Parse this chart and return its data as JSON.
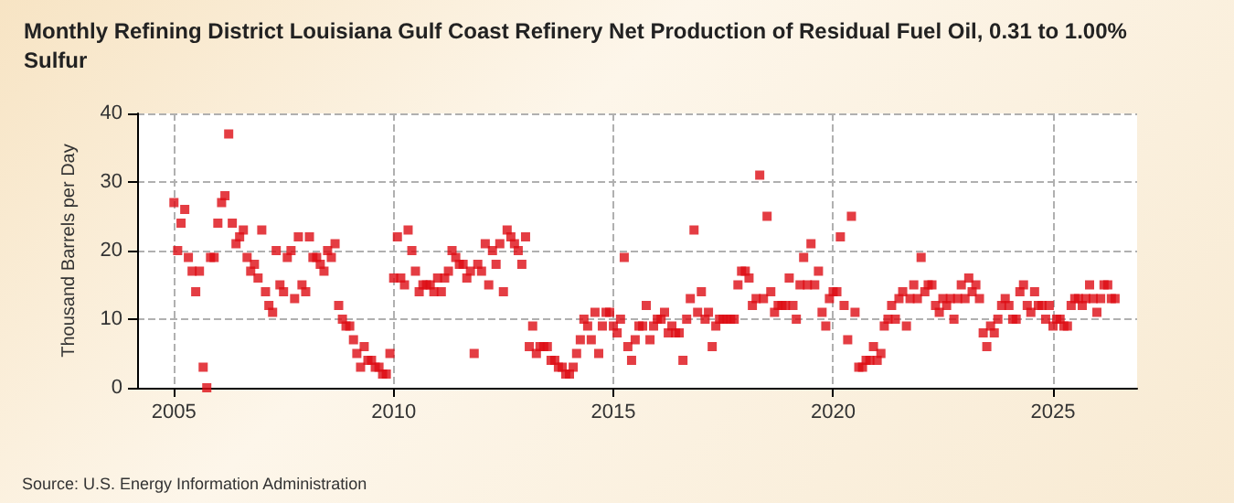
{
  "chart_data": {
    "type": "scatter",
    "title": "Monthly Refining District Louisiana Gulf Coast Refinery Net Production of Residual Fuel Oil, 0.31 to 1.00% Sulfur",
    "ylabel": "Thousand Barrels per Day",
    "annotations": [
      "Source: U.S. Energy Information Administration"
    ],
    "series": [
      {
        "color": "#dd0c14",
        "x": [
          "2005-01",
          "2005-02",
          "2005-03",
          "2005-04",
          "2005-05",
          "2005-06",
          "2005-07",
          "2005-08",
          "2005-09",
          "2005-10",
          "2005-11",
          "2005-12",
          "2006-01",
          "2006-02",
          "2006-03",
          "2006-04",
          "2006-05",
          "2006-06",
          "2006-07",
          "2006-08",
          "2006-09",
          "2006-10",
          "2006-11",
          "2006-12",
          "2007-01",
          "2007-02",
          "2007-03",
          "2007-04",
          "2007-05",
          "2007-06",
          "2007-07",
          "2007-08",
          "2007-09",
          "2007-10",
          "2007-11",
          "2007-12",
          "2008-01",
          "2008-02",
          "2008-03",
          "2008-04",
          "2008-05",
          "2008-06",
          "2008-07",
          "2008-08",
          "2008-09",
          "2008-10",
          "2008-11",
          "2008-12",
          "2009-01",
          "2009-02",
          "2009-03",
          "2009-04",
          "2009-05",
          "2009-06",
          "2009-07",
          "2009-08",
          "2009-09",
          "2009-10",
          "2009-11",
          "2009-12",
          "2010-01",
          "2010-02",
          "2010-03",
          "2010-04",
          "2010-05",
          "2010-06",
          "2010-07",
          "2010-08",
          "2010-09",
          "2010-10",
          "2010-11",
          "2010-12",
          "2011-01",
          "2011-02",
          "2011-03",
          "2011-04",
          "2011-05",
          "2011-06",
          "2011-07",
          "2011-08",
          "2011-09",
          "2011-10",
          "2011-11",
          "2011-12",
          "2012-01",
          "2012-02",
          "2012-03",
          "2012-04",
          "2012-05",
          "2012-06",
          "2012-07",
          "2012-08",
          "2012-09",
          "2012-10",
          "2012-11",
          "2012-12",
          "2013-01",
          "2013-02",
          "2013-03",
          "2013-04",
          "2013-05",
          "2013-06",
          "2013-07",
          "2013-08",
          "2013-09",
          "2013-10",
          "2013-11",
          "2013-12",
          "2014-01",
          "2014-02",
          "2014-03",
          "2014-04",
          "2014-05",
          "2014-06",
          "2014-07",
          "2014-08",
          "2014-09",
          "2014-10",
          "2014-11",
          "2014-12",
          "2015-01",
          "2015-02",
          "2015-03",
          "2015-04",
          "2015-05",
          "2015-06",
          "2015-07",
          "2015-08",
          "2015-09",
          "2015-10",
          "2015-11",
          "2015-12",
          "2016-01",
          "2016-02",
          "2016-03",
          "2016-04",
          "2016-05",
          "2016-06",
          "2016-07",
          "2016-08",
          "2016-09",
          "2016-10",
          "2016-11",
          "2016-12",
          "2017-01",
          "2017-02",
          "2017-03",
          "2017-04",
          "2017-05",
          "2017-06",
          "2017-07",
          "2017-08",
          "2017-09",
          "2017-10",
          "2017-11",
          "2017-12",
          "2018-01",
          "2018-02",
          "2018-03",
          "2018-04",
          "2018-05",
          "2018-06",
          "2018-07",
          "2018-08",
          "2018-09",
          "2018-10",
          "2018-11",
          "2018-12",
          "2019-01",
          "2019-02",
          "2019-03",
          "2019-04",
          "2019-05",
          "2019-06",
          "2019-07",
          "2019-08",
          "2019-09",
          "2019-10",
          "2019-11",
          "2019-12",
          "2020-01",
          "2020-02",
          "2020-03",
          "2020-04",
          "2020-05",
          "2020-06",
          "2020-07",
          "2020-08",
          "2020-09",
          "2020-10",
          "2020-11",
          "2020-12",
          "2021-01",
          "2021-02",
          "2021-03",
          "2021-04",
          "2021-05",
          "2021-06",
          "2021-07",
          "2021-08",
          "2021-09",
          "2021-10",
          "2021-11",
          "2021-12",
          "2022-01",
          "2022-02",
          "2022-03",
          "2022-04",
          "2022-05",
          "2022-06",
          "2022-07",
          "2022-08",
          "2022-09",
          "2022-10",
          "2022-11",
          "2022-12",
          "2023-01",
          "2023-02",
          "2023-03",
          "2023-04",
          "2023-05",
          "2023-06",
          "2023-07",
          "2023-08",
          "2023-09",
          "2023-10",
          "2023-11",
          "2023-12",
          "2024-01",
          "2024-02",
          "2024-03",
          "2024-04",
          "2024-05",
          "2024-06",
          "2024-07",
          "2024-08",
          "2024-09",
          "2024-10",
          "2024-11",
          "2024-12",
          "2025-01",
          "2025-02",
          "2025-03",
          "2025-04",
          "2025-05",
          "2025-06",
          "2025-07",
          "2025-08",
          "2025-09",
          "2025-10",
          "2025-11",
          "2025-12",
          "2026-01",
          "2026-02",
          "2026-03",
          "2026-04",
          "2026-05",
          "2026-06"
        ],
        "values": [
          27,
          20,
          24,
          26,
          19,
          17,
          14,
          17,
          3,
          0,
          19,
          19,
          24,
          27,
          28,
          37,
          24,
          21,
          22,
          23,
          19,
          17,
          18,
          16,
          23,
          14,
          12,
          11,
          20,
          15,
          14,
          19,
          20,
          13,
          22,
          15,
          14,
          22,
          19,
          19,
          18,
          17,
          20,
          19,
          21,
          12,
          10,
          9,
          9,
          7,
          5,
          3,
          6,
          4,
          4,
          3,
          3,
          2,
          2,
          5,
          16,
          22,
          16,
          15,
          23,
          20,
          17,
          14,
          15,
          15,
          15,
          14,
          16,
          14,
          16,
          17,
          20,
          19,
          18,
          18,
          16,
          17,
          5,
          18,
          17,
          21,
          15,
          20,
          18,
          21,
          14,
          23,
          22,
          21,
          20,
          18,
          22,
          6,
          9,
          5,
          6,
          6,
          6,
          4,
          4,
          3,
          3,
          2,
          2,
          3,
          5,
          7,
          10,
          9,
          7,
          11,
          5,
          9,
          11,
          11,
          9,
          8,
          10,
          19,
          6,
          4,
          7,
          9,
          9,
          12,
          7,
          9,
          10,
          10,
          11,
          8,
          9,
          8,
          8,
          4,
          10,
          13,
          23,
          11,
          14,
          10,
          11,
          6,
          9,
          10,
          10,
          10,
          10,
          10,
          15,
          17,
          17,
          16,
          12,
          13,
          31,
          13,
          25,
          14,
          11,
          12,
          12,
          12,
          16,
          12,
          10,
          15,
          19,
          15,
          21,
          15,
          17,
          11,
          9,
          13,
          14,
          14,
          22,
          12,
          7,
          25,
          11,
          3,
          3,
          4,
          4,
          6,
          4,
          5,
          9,
          10,
          12,
          10,
          13,
          14,
          9,
          13,
          15,
          13,
          19,
          14,
          15,
          15,
          12,
          11,
          13,
          12,
          13,
          10,
          13,
          15,
          13,
          16,
          14,
          15,
          13,
          8,
          6,
          9,
          8,
          10,
          12,
          13,
          12,
          10,
          10,
          14,
          15,
          12,
          11,
          14,
          12,
          12,
          10,
          12,
          9,
          10,
          10,
          9,
          9,
          12,
          13,
          13,
          12,
          13,
          15,
          13,
          11,
          13,
          15,
          15,
          13,
          13
        ]
      }
    ],
    "xlim": [
      "2004-03",
      "2026-12"
    ],
    "xticks": [
      "2005",
      "2010",
      "2015",
      "2020",
      "2025"
    ],
    "ylim": [
      0,
      40
    ],
    "yticks": [
      0,
      10,
      20,
      30,
      40
    ],
    "grid": true,
    "marker": "square"
  }
}
